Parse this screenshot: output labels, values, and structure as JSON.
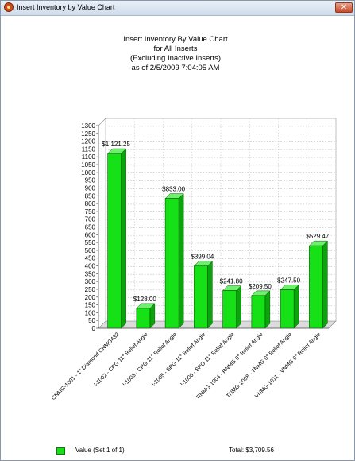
{
  "window": {
    "title": "Insert Inventory by Value Chart",
    "close_label": "✕"
  },
  "chart_data": {
    "type": "bar",
    "title_lines": [
      "Insert Inventory By Value Chart",
      "for All Inserts",
      "(Excluding Inactive Inserts)",
      "as of 2/5/2009 7:04:05 AM"
    ],
    "xlabel": "",
    "ylabel": "",
    "ylim": [
      0,
      1300
    ],
    "yticks": [
      0,
      50,
      100,
      150,
      200,
      250,
      300,
      350,
      400,
      450,
      500,
      550,
      600,
      650,
      700,
      750,
      800,
      850,
      900,
      950,
      1000,
      1050,
      1100,
      1150,
      1200,
      1250,
      1300
    ],
    "grid": true,
    "categories": [
      "CNMG-1001 - 1\" Diamond CNMG432",
      "I-1002 - CPG 11° Relief Angle",
      "I-1003 - CPG 11° Relief Angle",
      "I-1005 - SPG 11° Relief Angle",
      "I-1006 - SPG 11° Relief Angle",
      "RNMG-1004 - RNMG 0° Relief Angle",
      "TNMG-1008 - TNMG 0° Relief Angle",
      "VNMG-1011 - VNMG 0° Relief Angle"
    ],
    "values": [
      1121.25,
      128.0,
      833.0,
      399.04,
      241.8,
      209.5,
      247.5,
      529.47
    ],
    "data_labels": [
      "$1,121.25",
      "$128.00",
      "$833.00",
      "$399.04",
      "$241.80",
      "$209.50",
      "$247.50",
      "$529.47"
    ],
    "bar_color": "#16e016",
    "legend": {
      "label": "Value (Set 1 of 1)",
      "total": "Total: $3,709.56",
      "placement": "bottom-left"
    }
  }
}
